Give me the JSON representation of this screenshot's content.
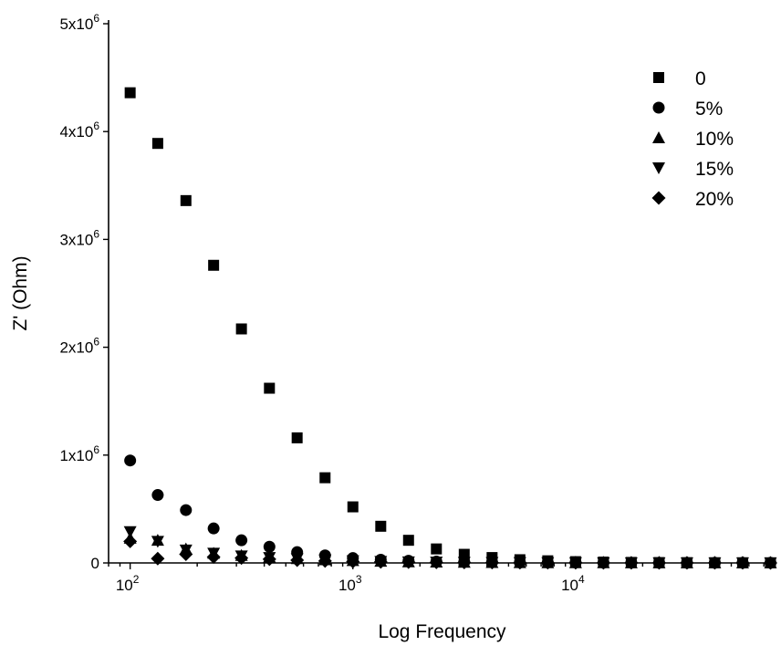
{
  "chart_data": {
    "type": "scatter",
    "xlabel": "Log Frequency",
    "ylabel": "Z' (Ohm)",
    "x_scale": "log",
    "xlim": [
      80,
      79000
    ],
    "ylim": [
      0,
      5000000
    ],
    "x_ticks": [
      {
        "value": 100,
        "base": "10",
        "exp": "2"
      },
      {
        "value": 1000,
        "base": "10",
        "exp": "3"
      },
      {
        "value": 10000,
        "base": "10",
        "exp": "4"
      }
    ],
    "y_ticks": [
      {
        "value": 0,
        "label": "0",
        "exp": ""
      },
      {
        "value": 1000000,
        "label": "1x10",
        "exp": "6"
      },
      {
        "value": 2000000,
        "label": "2x10",
        "exp": "6"
      },
      {
        "value": 3000000,
        "label": "3x10",
        "exp": "6"
      },
      {
        "value": 4000000,
        "label": "4x10",
        "exp": "6"
      },
      {
        "value": 5000000,
        "label": "5x10",
        "exp": "6"
      }
    ],
    "grid": false,
    "legend_position": "top-right",
    "x": [
      100,
      133,
      178,
      237,
      316,
      422,
      562,
      750,
      1000,
      1334,
      1778,
      2371,
      3162,
      4217,
      5623,
      7499,
      10000,
      13335,
      17783,
      23714,
      31623,
      42170,
      56234,
      74989
    ],
    "series": [
      {
        "name": "0",
        "marker": "square",
        "values": [
          4360000,
          3890000,
          3360000,
          2760000,
          2170000,
          1620000,
          1160000,
          790000,
          520000,
          340000,
          210000,
          130000,
          80000,
          50000,
          30000,
          20000,
          12000,
          8000,
          5000,
          3500,
          2500,
          1800,
          1400,
          1000
        ]
      },
      {
        "name": "5%",
        "marker": "circle",
        "values": [
          950000,
          630000,
          490000,
          320000,
          210000,
          150000,
          100000,
          70000,
          45000,
          30000,
          20000,
          13000,
          9000,
          6000,
          4500,
          3500,
          2500,
          2000,
          1500,
          1200,
          1000,
          900,
          800,
          700
        ]
      },
      {
        "name": "10%",
        "marker": "triangle-up",
        "values": [
          230000,
          210000,
          130000,
          90000,
          70000,
          55000,
          40000,
          30000,
          22000,
          16000,
          11000,
          8000,
          6000,
          4500,
          3500,
          2500,
          2000,
          1600,
          1300,
          1100,
          900,
          800,
          700,
          600
        ]
      },
      {
        "name": "15%",
        "marker": "triangle-down",
        "values": [
          290000,
          200000,
          120000,
          90000,
          65000,
          50000,
          38000,
          28000,
          20000,
          14000,
          10000,
          7000,
          5500,
          4200,
          3200,
          2400,
          1900,
          1500,
          1200,
          1000,
          850,
          750,
          650,
          550
        ]
      },
      {
        "name": "20%",
        "marker": "diamond",
        "values": [
          200000,
          40000,
          80000,
          55000,
          45000,
          35000,
          25000,
          18000,
          13000,
          10000,
          7500,
          5500,
          4200,
          3300,
          2600,
          2000,
          1600,
          1300,
          1100,
          950,
          800,
          700,
          600,
          500
        ]
      }
    ]
  }
}
